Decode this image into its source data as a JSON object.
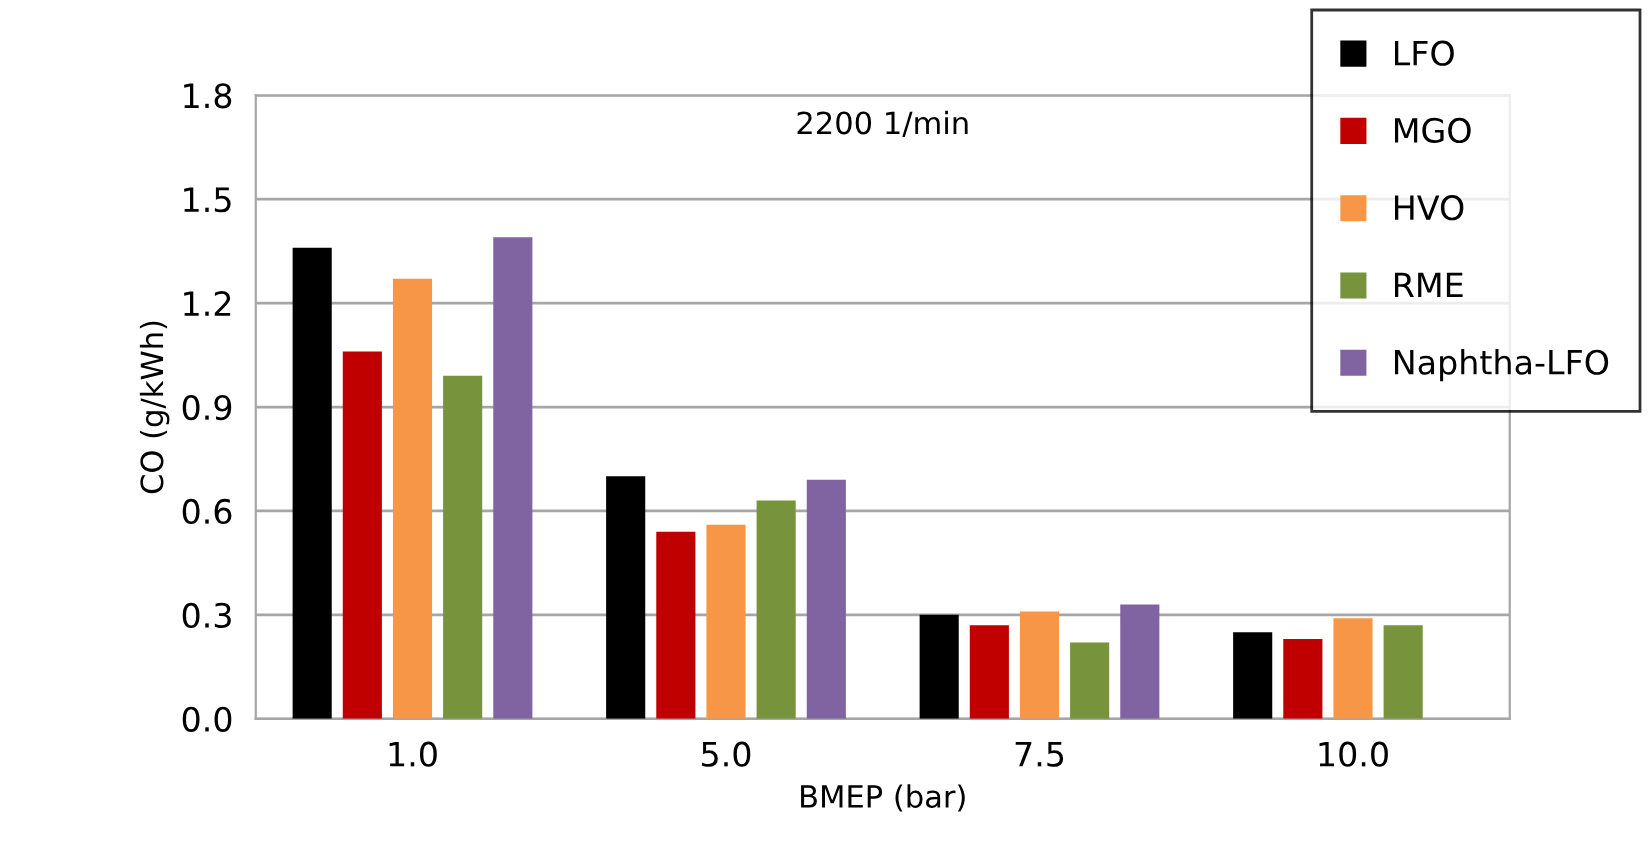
{
  "chart_data": {
    "type": "bar",
    "title": "2200 1/min",
    "xlabel": "BMEP (bar)",
    "ylabel": "CO (g/kWh)",
    "categories": [
      "1.0",
      "5.0",
      "7.5",
      "10.0"
    ],
    "series": [
      {
        "name": "LFO",
        "color": "#000000",
        "values": [
          1.36,
          0.7,
          0.3,
          0.25
        ]
      },
      {
        "name": "MGO",
        "color": "#c00000",
        "values": [
          1.06,
          0.54,
          0.27,
          0.23
        ]
      },
      {
        "name": "HVO",
        "color": "#f79646",
        "values": [
          1.27,
          0.56,
          0.31,
          0.29
        ]
      },
      {
        "name": "RME",
        "color": "#77933c",
        "values": [
          0.99,
          0.63,
          0.22,
          0.27
        ]
      },
      {
        "name": "Naphtha-LFO",
        "color": "#8064a2",
        "values": [
          1.39,
          0.69,
          0.33,
          null
        ]
      }
    ],
    "ylim": [
      0,
      1.8
    ],
    "yticks": [
      {
        "value": 0,
        "label": "0.0"
      },
      {
        "value": 0.3,
        "label": "0.3"
      },
      {
        "value": 0.6,
        "label": "0.6"
      },
      {
        "value": 0.9,
        "label": "0.9"
      },
      {
        "value": 1.2,
        "label": "1.2"
      },
      {
        "value": 1.5,
        "label": "1.5"
      },
      {
        "value": 1.8,
        "label": "1.8"
      }
    ],
    "grid": "y",
    "legend": "top right"
  }
}
